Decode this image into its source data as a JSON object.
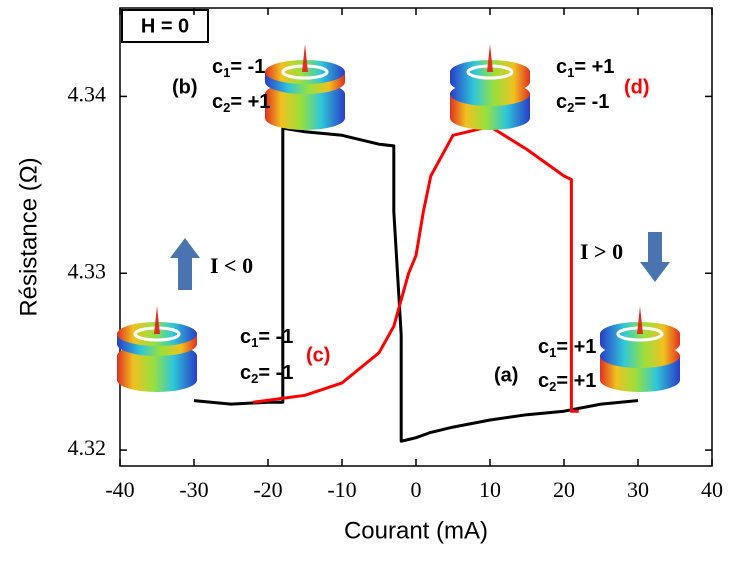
{
  "chart_data": {
    "type": "line",
    "x_label": "Courant (mA)",
    "y_label": "Résistance (Ω)",
    "xlim": [
      -40,
      40
    ],
    "ylim": [
      4.3191,
      4.345
    ],
    "xticks": [
      -40,
      -30,
      -20,
      -10,
      0,
      10,
      20,
      30,
      40
    ],
    "yticks": [
      4.32,
      4.33,
      4.34
    ],
    "series": [
      {
        "color": "#000000",
        "x": [
          30,
          25,
          20,
          15,
          10,
          5,
          2,
          0,
          -1,
          -2,
          -2,
          -2,
          -2.5,
          -3,
          -3,
          -5,
          -10,
          -15,
          -18,
          -18,
          -20,
          -25,
          -30
        ],
        "values": [
          4.3228,
          4.3226,
          4.3222,
          4.322,
          4.3217,
          4.3213,
          4.321,
          4.3207,
          4.3206,
          4.3205,
          4.3215,
          4.3265,
          4.33,
          4.3335,
          4.3372,
          4.3373,
          4.3378,
          4.338,
          4.3382,
          4.3227,
          4.3227,
          4.3226,
          4.3228
        ]
      },
      {
        "color": "#ff0000",
        "x": [
          -22,
          -15,
          -10,
          -5,
          -3,
          -1,
          0,
          1,
          2,
          5,
          10,
          15,
          20,
          21,
          21,
          22
        ],
        "values": [
          4.3227,
          4.3231,
          4.3238,
          4.3255,
          4.327,
          4.33,
          4.331,
          4.3335,
          4.3355,
          4.3378,
          4.3383,
          4.337,
          4.3355,
          4.3353,
          4.3222,
          4.3222
        ]
      }
    ],
    "field_label": "H = 0",
    "current_labels": [
      "I < 0",
      "I > 0"
    ],
    "states": [
      {
        "label": "(b)",
        "label_color": "#000000",
        "c1": {
          "base": "c",
          "sub": "1",
          "value": "= -1"
        },
        "c2": {
          "base": "c",
          "sub": "2",
          "value": "= +1"
        }
      },
      {
        "label": "(d)",
        "label_color": "#ff0000",
        "c1": {
          "base": "c",
          "sub": "1",
          "value": "= +1"
        },
        "c2": {
          "base": "c",
          "sub": "2",
          "value": "= -1"
        }
      },
      {
        "label": "(c)",
        "label_color": "#ff0000",
        "c1": {
          "base": "c",
          "sub": "1",
          "value": "= -1"
        },
        "c2": {
          "base": "c",
          "sub": "2",
          "value": "= -1"
        }
      },
      {
        "label": "(a)",
        "label_color": "#000000",
        "c1": {
          "base": "c",
          "sub": "1",
          "value": "= +1"
        },
        "c2": {
          "base": "c",
          "sub": "2",
          "value": "= +1"
        }
      }
    ]
  }
}
